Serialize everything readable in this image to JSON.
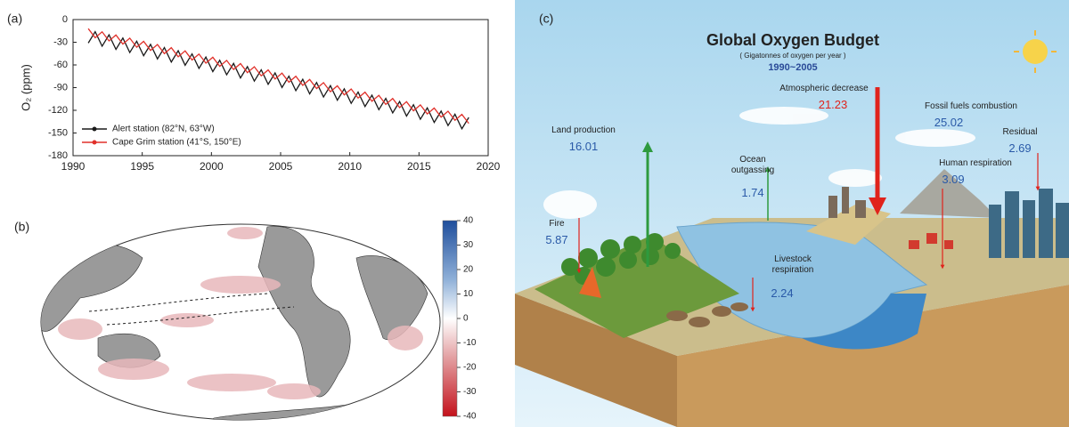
{
  "chart_data": [
    {
      "type": "line",
      "panel_label": "(a)",
      "ylabel": "O₂ (ppm)",
      "x": [
        1991.1,
        1991.6,
        1992.1,
        1992.6,
        1993.1,
        1993.6,
        1994.1,
        1994.6,
        1995.1,
        1995.6,
        1996.1,
        1996.6,
        1997.1,
        1997.6,
        1998.1,
        1998.6,
        1999.1,
        1999.6,
        2000.1,
        2000.6,
        2001.1,
        2001.6,
        2002.1,
        2002.6,
        2003.1,
        2003.6,
        2004.1,
        2004.6,
        2005.1,
        2005.6,
        2006.1,
        2006.6,
        2007.1,
        2007.6,
        2008.1,
        2008.6,
        2009.1,
        2009.6,
        2010.1,
        2010.6,
        2011.1,
        2011.6,
        2012.1,
        2012.6,
        2013.1,
        2013.6,
        2014.1,
        2014.6,
        2015.1,
        2015.6,
        2016.1,
        2016.6,
        2017.1,
        2017.6,
        2018.1,
        2018.6
      ],
      "series": [
        {
          "name": "Alert station (82°N, 63°W)",
          "color": "#1a1a1a",
          "values": [
            -31,
            -16,
            -35.2,
            -20.2,
            -39.4,
            -24.4,
            -43.6,
            -28.6,
            -47.8,
            -32.8,
            -52,
            -37,
            -56.2,
            -41.2,
            -60.4,
            -45.4,
            -64.6,
            -49.6,
            -68.8,
            -53.8,
            -73,
            -58,
            -77.2,
            -62.2,
            -81.4,
            -66.4,
            -85.6,
            -70.6,
            -89.8,
            -74.8,
            -94,
            -79,
            -98.2,
            -83.2,
            -102.4,
            -87.4,
            -106.6,
            -91.6,
            -110.8,
            -95.8,
            -115,
            -100,
            -119.2,
            -104.2,
            -123.4,
            -108.4,
            -127.6,
            -112.6,
            -131.8,
            -116.8,
            -136,
            -121,
            -140.2,
            -125.2,
            -144.4,
            -129.4
          ]
        },
        {
          "name": "Cape Grim station (41°S, 150°E)",
          "color": "#e0302a",
          "values": [
            -12,
            -24,
            -16.2,
            -28.2,
            -20.4,
            -32.4,
            -24.6,
            -36.6,
            -28.8,
            -40.8,
            -33,
            -45,
            -37.2,
            -49.2,
            -41.4,
            -53.4,
            -45.6,
            -57.6,
            -49.8,
            -61.8,
            -54,
            -66,
            -58.2,
            -70.2,
            -62.4,
            -74.4,
            -66.6,
            -78.6,
            -70.8,
            -82.8,
            -75,
            -87,
            -79.2,
            -91.2,
            -83.4,
            -95.4,
            -87.6,
            -99.6,
            -91.8,
            -103.8,
            -96,
            -108,
            -100.2,
            -112.2,
            -104.4,
            -116.4,
            -108.6,
            -120.6,
            -112.8,
            -124.8,
            -117,
            -129,
            -121.2,
            -133.2,
            -125.4,
            -137.4
          ]
        }
      ],
      "xlim": [
        1990,
        2020
      ],
      "xticks": [
        1990,
        1995,
        2000,
        2005,
        2010,
        2015,
        2020
      ],
      "ylim": [
        -180,
        0
      ],
      "yticks": [
        0,
        -30,
        -60,
        -90,
        -120,
        -150,
        -180
      ],
      "legend": "lower left"
    }
  ],
  "map": {
    "panel_label": "(b)",
    "colorbar": {
      "lim": [
        -40,
        40
      ],
      "ticks": [
        40,
        30,
        20,
        10,
        0,
        -10,
        -20,
        -30,
        -40
      ]
    }
  },
  "diagram": {
    "panel_label": "(c)",
    "title": "Global Oxygen Budget",
    "unit": "( Gigatonnes of oxygen per year )",
    "period": "1990~2005",
    "flows": [
      {
        "label": "Atmospheric decrease",
        "value": 21.23
      },
      {
        "label": "Fossil fuels combustion",
        "value": 25.02
      },
      {
        "label": "Land production",
        "value": 16.01
      },
      {
        "label": "Residual",
        "value": 2.69
      },
      {
        "label": "Ocean outgassing",
        "value": 1.74
      },
      {
        "label": "Human respiration",
        "value": 3.09
      },
      {
        "label": "Fire",
        "value": 5.87
      },
      {
        "label": "Livestock respiration",
        "value": 2.24
      }
    ]
  }
}
